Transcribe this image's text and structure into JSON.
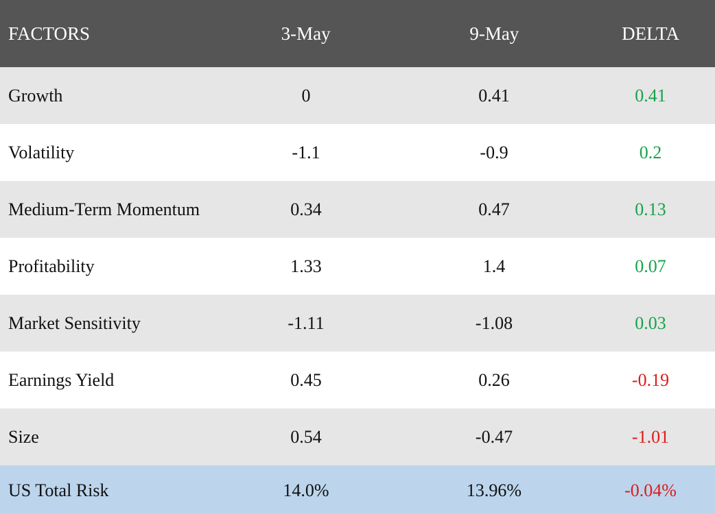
{
  "chart_data": {
    "type": "table",
    "columns": [
      "FACTORS",
      "3-May",
      "9-May",
      "DELTA"
    ],
    "rows": [
      {
        "factor": "Growth",
        "may3": "0",
        "may9": "0.41",
        "delta": "0.41"
      },
      {
        "factor": "Volatility",
        "may3": "-1.1",
        "may9": "-0.9",
        "delta": "0.2"
      },
      {
        "factor": "Medium-Term Momentum",
        "may3": "0.34",
        "may9": "0.47",
        "delta": "0.13"
      },
      {
        "factor": "Profitability",
        "may3": "1.33",
        "may9": "1.4",
        "delta": "0.07"
      },
      {
        "factor": "Market Sensitivity",
        "may3": "-1.11",
        "may9": "-1.08",
        "delta": "0.03"
      },
      {
        "factor": "Earnings Yield",
        "may3": "0.45",
        "may9": "0.26",
        "delta": "-0.19"
      },
      {
        "factor": "Size",
        "may3": "0.54",
        "may9": "-0.47",
        "delta": "-1.01"
      }
    ],
    "total": {
      "factor": "US Total Risk",
      "may3": "14.0%",
      "may9": "13.96%",
      "delta": "-0.04%"
    }
  },
  "colors": {
    "header_bg": "#555555",
    "row_shaded": "#e6e6e6",
    "row_plain": "#ffffff",
    "total_bg": "#bcd5ec",
    "positive": "#16a34a",
    "negative": "#e01a1a"
  }
}
